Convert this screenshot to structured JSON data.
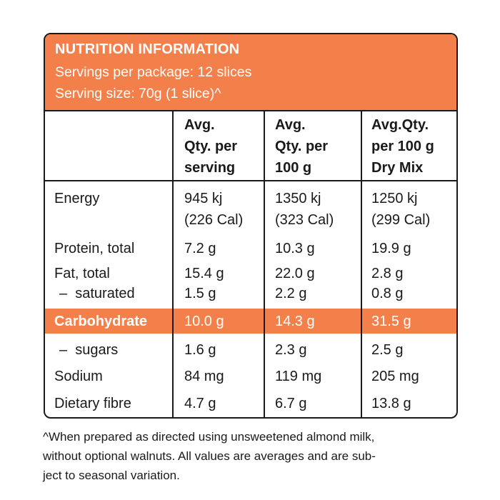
{
  "header": {
    "title": "NUTRITION INFORMATION",
    "servings_per_package": "Servings per package: 12 slices",
    "serving_size": "Serving size: 70g (1 slice)^"
  },
  "columns": [
    [
      "Avg.",
      "Qty. per",
      "serving"
    ],
    [
      "Avg.",
      "Qty. per",
      "100 g"
    ],
    [
      "Avg.Qty.",
      "per 100 g",
      "Dry Mix"
    ]
  ],
  "rows": [
    {
      "label": "Energy",
      "values": [
        [
          "945 kj",
          "(226 Cal)"
        ],
        [
          "1350 kj",
          "(323 Cal)"
        ],
        [
          "1250 kj",
          "(299 Cal)"
        ]
      ]
    },
    {
      "label": "Protein, total",
      "values": [
        "7.2 g",
        "10.3 g",
        "19.9 g"
      ]
    },
    {
      "label": "Fat, total",
      "values": [
        "15.4 g",
        "22.0 g",
        "2.8 g"
      ]
    },
    {
      "label": "–  saturated",
      "values": [
        "1.5 g",
        "2.2 g",
        "0.8 g"
      ]
    },
    {
      "label": "Carbohydrate",
      "values": [
        "10.0 g",
        "14.3 g",
        "31.5 g"
      ],
      "highlight": true
    },
    {
      "label": "–  sugars",
      "values": [
        "1.6 g",
        "2.3 g",
        "2.5 g"
      ]
    },
    {
      "label": "Sodium",
      "values": [
        "84 mg",
        "119 mg",
        "205 mg"
      ]
    },
    {
      "label": "Dietary fibre",
      "values": [
        "4.7 g",
        "6.7 g",
        "13.8 g"
      ]
    }
  ],
  "footnote": [
    "^When prepared as directed using unsweetened almond milk,",
    "without optional walnuts. All values are averages and are sub-",
    "ject to seasonal variation."
  ],
  "colors": {
    "accent": "#F3804A",
    "border": "#1a1a1a"
  }
}
